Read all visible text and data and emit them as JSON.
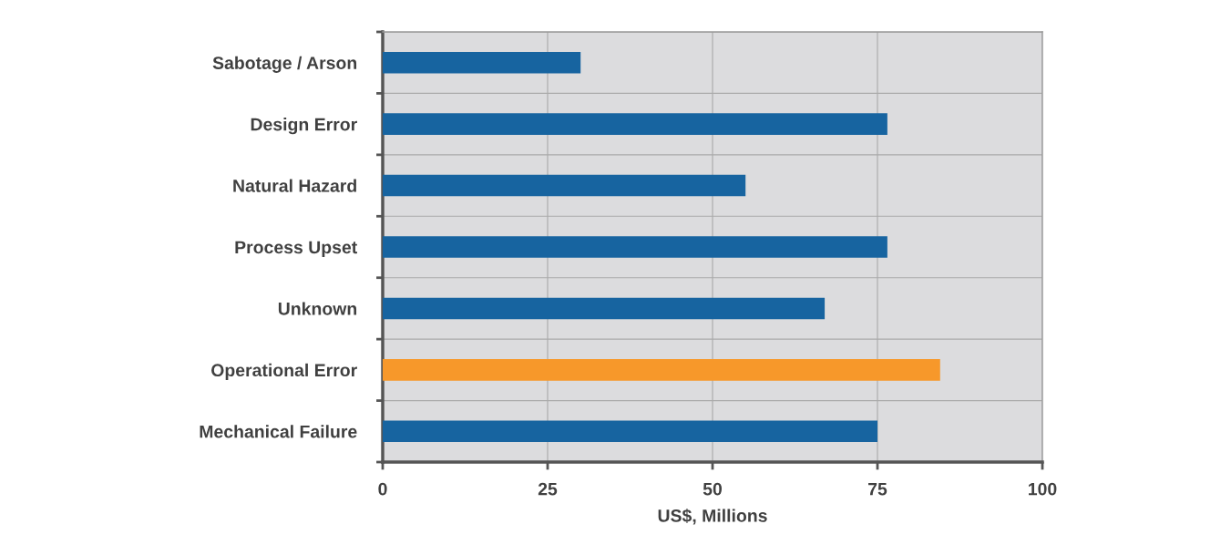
{
  "chart_data": {
    "type": "bar",
    "orientation": "horizontal",
    "xlabel": "US$, Millions",
    "categories": [
      "Sabotage / Arson",
      "Design Error",
      "Natural Hazard",
      "Process Upset",
      "Unknown",
      "Operational Error",
      "Mechanical Failure"
    ],
    "values": [
      30,
      76.5,
      55,
      76.5,
      67,
      84.5,
      75
    ],
    "colors": [
      "#1764a0",
      "#1764a0",
      "#1764a0",
      "#1764a0",
      "#1764a0",
      "#f7982a",
      "#1764a0"
    ],
    "xlim": [
      0,
      100
    ],
    "xticks": [
      0,
      25,
      50,
      75,
      100
    ],
    "grid": true
  }
}
